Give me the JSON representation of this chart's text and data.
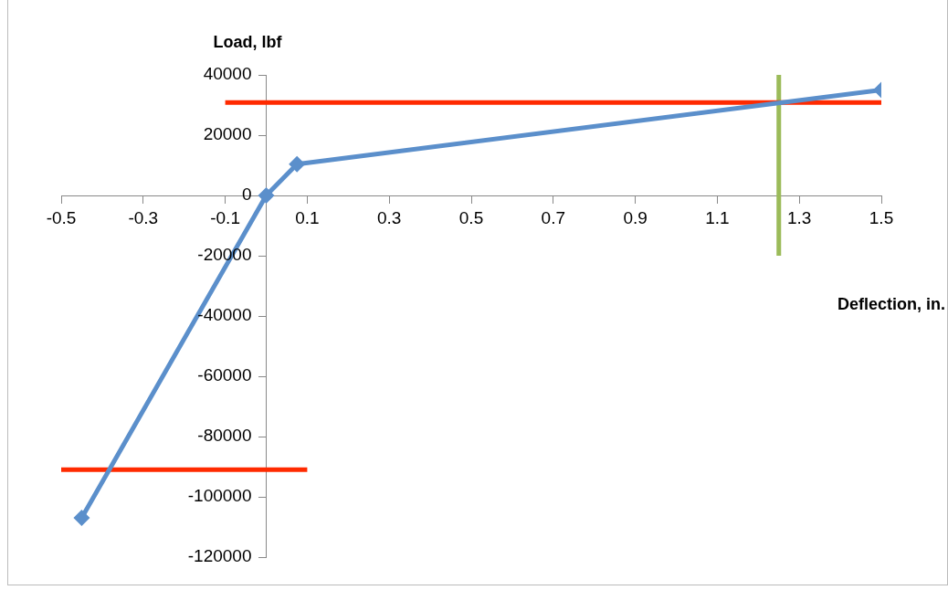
{
  "chart_data": {
    "type": "line",
    "xlabel": "Deflection, in.",
    "ylabel": "Load, lbf",
    "xlim": [
      -0.5,
      1.5
    ],
    "xticks": [
      -0.5,
      -0.3,
      -0.1,
      0.1,
      0.3,
      0.5,
      0.7,
      0.9,
      1.1,
      1.3,
      1.5
    ],
    "ylim": [
      -120000,
      40000
    ],
    "yticks": [
      -120000,
      -100000,
      -80000,
      -60000,
      -40000,
      -20000,
      0,
      20000,
      40000
    ],
    "grid": false,
    "legend": false,
    "marker": "diamond",
    "line_style": "solid",
    "series": [
      {
        "color": "#5b8fcb",
        "x": [
          -0.45,
          0,
          0.075,
          1.5
        ],
        "values": [
          -107000,
          0,
          10400,
          35000
        ]
      },
      {
        "color": "#ff2a00",
        "marker": "none",
        "x": [
          -0.1,
          1.5
        ],
        "values": [
          30800,
          30800
        ]
      },
      {
        "color": "#ff2a00",
        "marker": "none",
        "x": [
          -0.5,
          0.1
        ],
        "values": [
          -91000,
          -91000
        ]
      },
      {
        "color": "#9bbb59",
        "marker": "none",
        "x": [
          1.25,
          1.25
        ],
        "values": [
          -20000,
          40000
        ]
      }
    ]
  }
}
